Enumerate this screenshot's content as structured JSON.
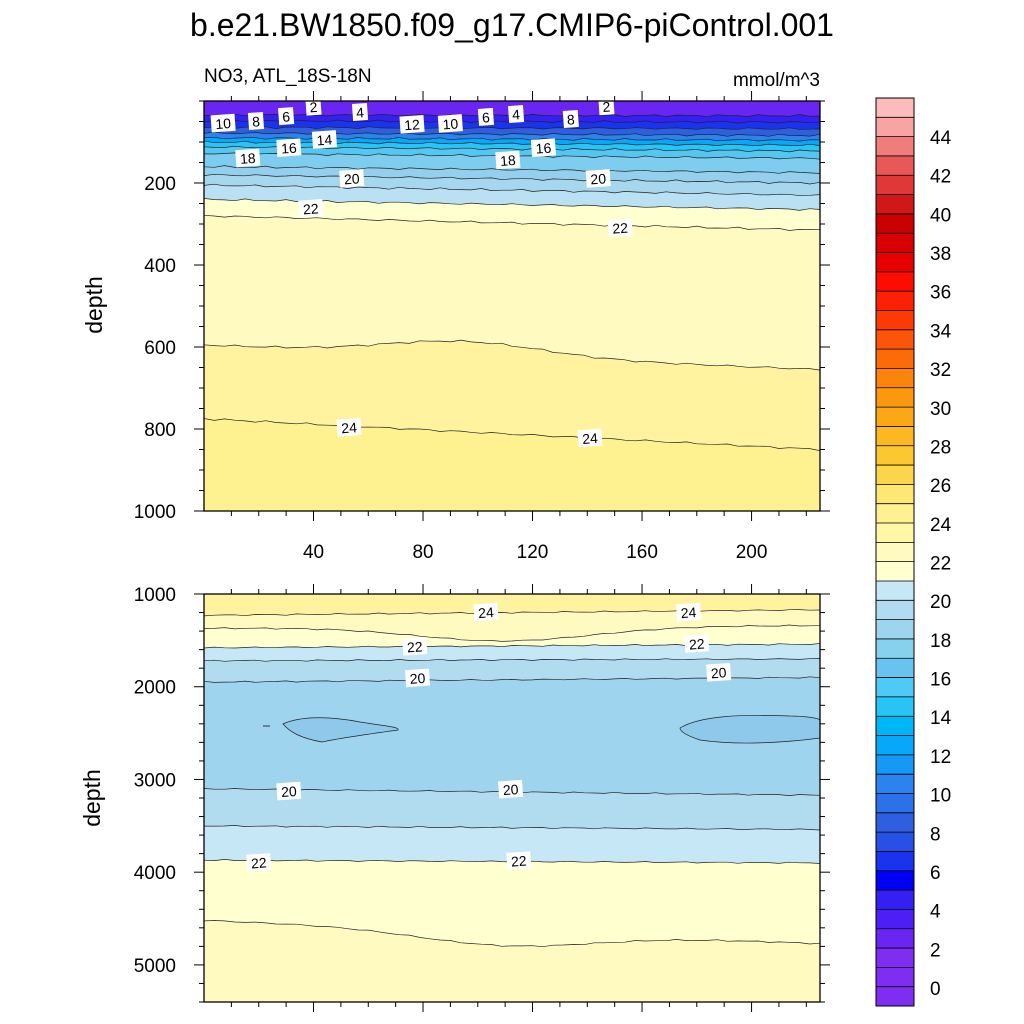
{
  "title": "b.e21.BW1850.f09_g17.CMIP6-piControl.001",
  "colors": {
    "palette": [
      "#7f2df1",
      "#6a25f2",
      "#4d1ff6",
      "#3520f4",
      "#0000f8",
      "#1a33ee",
      "#2750e4",
      "#2f5fe0",
      "#2d71ea",
      "#2b82f0",
      "#1698f6",
      "#07a7fa",
      "#00b7f6",
      "#27c4f5",
      "#4fcaf4",
      "#68c4ef",
      "#86d2ee",
      "#9fd4ee",
      "#b1dcf0",
      "#c5e7f6",
      "#ffffd0",
      "#fffac0",
      "#fff6a8",
      "#fef18f",
      "#fde873",
      "#fcd64a",
      "#fcc830",
      "#fcb820",
      "#fca815",
      "#fc980f",
      "#fc840b",
      "#fc6b0a",
      "#fc5408",
      "#fc3a06",
      "#fc2005",
      "#fc0d03",
      "#e80000",
      "#d80000",
      "#c80000",
      "#d01818",
      "#e03838",
      "#e85858",
      "#f07c7c",
      "#f8a4a4",
      "#fcbcbc"
    ]
  },
  "chart_data": [
    {
      "type": "contour",
      "panel": "top",
      "subtitle_left": "NO3, ATL_18S-18N",
      "subtitle_right": "mmol/m^3",
      "ylabel": "depth",
      "xlabel": "",
      "xlim": [
        0,
        225
      ],
      "ylim": [
        1000,
        0
      ],
      "y_reversed": true,
      "xticks": [
        40,
        80,
        120,
        160,
        200
      ],
      "yticks": [
        200,
        400,
        600,
        800,
        1000
      ],
      "contours": [
        {
          "level": 24,
          "y_left": 775,
          "y_right": 850,
          "label": "24"
        },
        {
          "level": 23,
          "y_left": 595,
          "y_right": 655,
          "label": ""
        },
        {
          "level": 22,
          "y_left": 280,
          "y_right": 315,
          "label": "22"
        },
        {
          "level": 21,
          "y_left": 240,
          "y_right": 265,
          "label": ""
        },
        {
          "level": 20,
          "y_left": 205,
          "y_right": 230,
          "label": "20"
        },
        {
          "level": 19,
          "y_left": 180,
          "y_right": 200,
          "label": ""
        },
        {
          "level": 18,
          "y_left": 160,
          "y_right": 175,
          "label": "18"
        },
        {
          "level": 16,
          "y_left": 128,
          "y_right": 140,
          "label": "16"
        },
        {
          "level": 14,
          "y_left": 112,
          "y_right": 122,
          "label": "14"
        },
        {
          "level": 12,
          "y_left": 100,
          "y_right": 108,
          "label": "12"
        },
        {
          "level": 10,
          "y_left": 90,
          "y_right": 96,
          "label": "10"
        },
        {
          "level": 8,
          "y_left": 78,
          "y_right": 84,
          "label": "8"
        },
        {
          "level": 6,
          "y_left": 64,
          "y_right": 68,
          "label": "6"
        },
        {
          "level": 4,
          "y_left": 48,
          "y_right": 52,
          "label": "4"
        },
        {
          "level": 2,
          "y_left": 34,
          "y_right": 36,
          "label": "2"
        }
      ],
      "contour_labels": [
        {
          "text": "2",
          "x": 40,
          "y": 15
        },
        {
          "text": "4",
          "x": 57,
          "y": 28
        },
        {
          "text": "6",
          "x": 30,
          "y": 38
        },
        {
          "text": "8",
          "x": 19,
          "y": 50
        },
        {
          "text": "10",
          "x": 7,
          "y": 55
        },
        {
          "text": "12",
          "x": 76,
          "y": 58
        },
        {
          "text": "10",
          "x": 90,
          "y": 56
        },
        {
          "text": "6",
          "x": 103,
          "y": 40
        },
        {
          "text": "4",
          "x": 114,
          "y": 33
        },
        {
          "text": "8",
          "x": 134,
          "y": 45
        },
        {
          "text": "2",
          "x": 147,
          "y": 14
        },
        {
          "text": "14",
          "x": 44,
          "y": 95
        },
        {
          "text": "16",
          "x": 31,
          "y": 115
        },
        {
          "text": "16",
          "x": 124,
          "y": 115
        },
        {
          "text": "18",
          "x": 16,
          "y": 140
        },
        {
          "text": "18",
          "x": 111,
          "y": 145
        },
        {
          "text": "20",
          "x": 54,
          "y": 190
        },
        {
          "text": "20",
          "x": 144,
          "y": 190
        },
        {
          "text": "22",
          "x": 39,
          "y": 263
        },
        {
          "text": "22",
          "x": 152,
          "y": 310
        },
        {
          "text": "24",
          "x": 53,
          "y": 797
        },
        {
          "text": "24",
          "x": 141,
          "y": 823
        }
      ]
    },
    {
      "type": "contour",
      "panel": "bottom",
      "ylabel": "depth",
      "xlabel": "",
      "xlim": [
        0,
        225
      ],
      "ylim": [
        5400,
        1000
      ],
      "y_reversed": true,
      "yticks": [
        1000,
        2000,
        3000,
        4000,
        5000
      ],
      "contours": [
        {
          "level": 24,
          "y_left": 1230,
          "y_right": 1170,
          "label": "24"
        },
        {
          "level": 23,
          "y_left": 1370,
          "y_right": 1340,
          "label": ""
        },
        {
          "level": 22,
          "y_left": 1580,
          "y_right": 1540,
          "label": "22"
        },
        {
          "level": 21,
          "y_left": 1720,
          "y_right": 1700,
          "label": ""
        },
        {
          "level": 20,
          "y_left": 1950,
          "y_right": 1900,
          "label": "20"
        },
        {
          "level": 20,
          "y_left": 3100,
          "y_right": 3170,
          "label": "20"
        },
        {
          "level": 21,
          "y_left": 3500,
          "y_right": 3540,
          "label": ""
        },
        {
          "level": 22,
          "y_left": 3870,
          "y_right": 3900,
          "label": "22"
        },
        {
          "level": 23,
          "y_left": 4520,
          "y_right": 4770,
          "label": ""
        }
      ],
      "contour_labels": [
        {
          "text": "24",
          "x": 103,
          "y": 1200
        },
        {
          "text": "24",
          "x": 177,
          "y": 1200
        },
        {
          "text": "22",
          "x": 77,
          "y": 1570
        },
        {
          "text": "22",
          "x": 180,
          "y": 1540
        },
        {
          "text": "20",
          "x": 78,
          "y": 1910
        },
        {
          "text": "20",
          "x": 188,
          "y": 1850
        },
        {
          "text": "20",
          "x": 31,
          "y": 3130
        },
        {
          "text": "20",
          "x": 112,
          "y": 3110
        },
        {
          "text": "22",
          "x": 20,
          "y": 3900
        },
        {
          "text": "22",
          "x": 115,
          "y": 3880
        }
      ]
    }
  ],
  "colorbar": {
    "levels": [
      -1,
      0,
      1,
      2,
      3,
      4,
      5,
      6,
      7,
      8,
      9,
      10,
      11,
      12,
      13,
      14,
      15,
      16,
      17,
      18,
      19,
      20,
      21,
      22,
      23,
      24,
      25,
      26,
      27,
      28,
      29,
      30,
      31,
      32,
      33,
      34,
      35,
      36,
      37,
      38,
      39,
      40,
      41,
      42,
      43,
      44,
      45
    ],
    "labels": [
      "0",
      "2",
      "4",
      "6",
      "8",
      "10",
      "12",
      "14",
      "16",
      "18",
      "20",
      "22",
      "24",
      "26",
      "28",
      "30",
      "32",
      "34",
      "36",
      "38",
      "40",
      "42",
      "44"
    ]
  }
}
